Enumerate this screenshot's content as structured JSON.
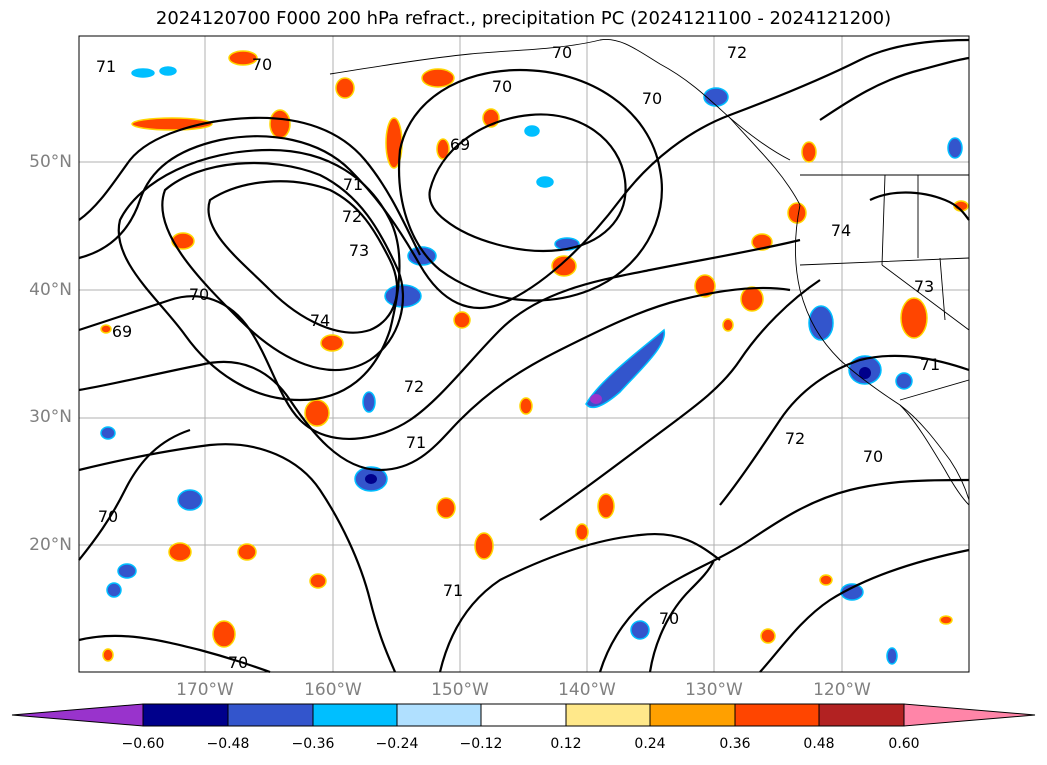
{
  "title": "2024120700 F000 200 hPa refract., precipitation PC (2024121100 - 2024121200)",
  "map": {
    "lat_labels": [
      "50°N",
      "40°N",
      "30°N",
      "20°N"
    ],
    "lon_labels": [
      "170°W",
      "160°W",
      "150°W",
      "140°W",
      "130°W",
      "120°W"
    ],
    "contour_labels": [
      "71",
      "70",
      "70",
      "70",
      "72",
      "69",
      "70",
      "71",
      "72",
      "73",
      "74",
      "70",
      "69",
      "74",
      "72",
      "71",
      "73",
      "71",
      "70",
      "72",
      "70",
      "70",
      "71",
      "70"
    ],
    "contour_color": "#000000",
    "grid_color": "#b0b0b0"
  },
  "colorbar": {
    "tick_labels": [
      "−0.60",
      "−0.48",
      "−0.36",
      "−0.24",
      "−0.12",
      "0.12",
      "0.24",
      "0.36",
      "0.48",
      "0.60"
    ],
    "colors": [
      "#9933cc",
      "#00008b",
      "#3355cc",
      "#00bfff",
      "#b0e0ff",
      "#ffffff",
      "#ffe88a",
      "#ffa000",
      "#ff4500",
      "#b22222",
      "#ff85a8"
    ]
  }
}
